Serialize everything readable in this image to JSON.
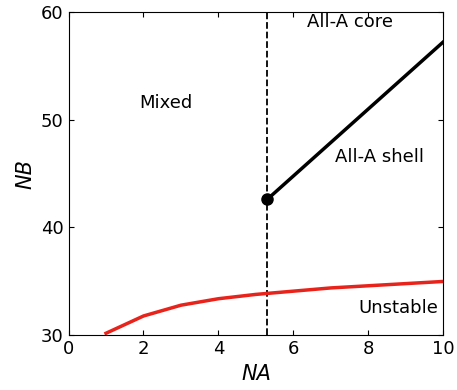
{
  "chart_data": {
    "type": "line",
    "x_label": "NA",
    "y_label": "NB",
    "xlim": [
      0,
      10
    ],
    "ylim": [
      30,
      60
    ],
    "xticks": [
      0,
      2,
      4,
      6,
      8,
      10
    ],
    "yticks": [
      30,
      40,
      50,
      60
    ],
    "series": [
      {
        "color": "#000000",
        "line_style": "dashed",
        "marker": "none",
        "x": [
          5.3,
          5.3
        ],
        "values": [
          30,
          60
        ]
      },
      {
        "color": "#000000",
        "line_style": "solid",
        "marker": "o",
        "x": [
          5.3,
          10
        ],
        "values": [
          42.6,
          57.2
        ]
      },
      {
        "color": "#e8231b",
        "line_style": "solid",
        "marker": "none",
        "x": [
          1,
          2,
          3,
          4,
          5,
          6,
          7,
          8,
          9,
          10
        ],
        "values": [
          30.2,
          31.8,
          32.8,
          33.4,
          33.8,
          34.1,
          34.4,
          34.6,
          34.8,
          35.0
        ]
      }
    ],
    "annotations": [
      {
        "text": "Mixed",
        "x": 2.6,
        "y": 51.5
      },
      {
        "text": "All-A core",
        "x": 7.5,
        "y": 59.0
      },
      {
        "text": "All-A shell",
        "x": 8.3,
        "y": 46.5
      },
      {
        "text": "Unstable",
        "x": 8.8,
        "y": 32.5
      }
    ]
  }
}
